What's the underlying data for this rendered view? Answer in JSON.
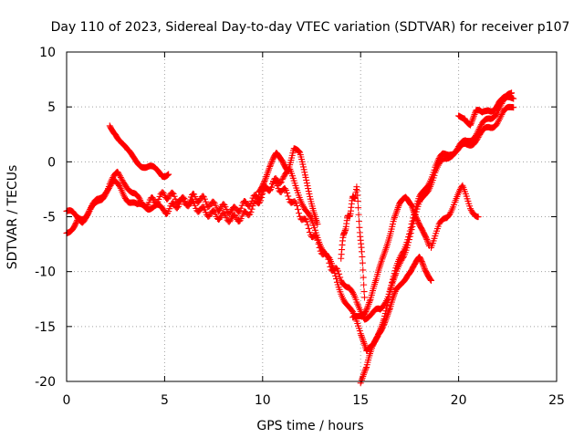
{
  "chart_data": {
    "type": "scatter",
    "title": "Day 110 of 2023, Sidereal Day-to-day VTEC variation (SDTVAR) for receiver p107",
    "xlabel": "GPS time / hours",
    "ylabel": "SDTVAR / TECUs",
    "xlim": [
      0,
      25
    ],
    "ylim": [
      -20,
      10
    ],
    "x_ticks": [
      "0",
      "5",
      "10",
      "15",
      "20",
      "25"
    ],
    "y_ticks": [
      "10",
      "5",
      "0",
      "-5",
      "-10",
      "-15",
      "-20"
    ],
    "grid": true,
    "marker": "+",
    "color": "#ff0000",
    "series": [
      {
        "x": [
          0.0,
          0.3,
          0.6,
          1.0,
          1.4,
          1.8,
          2.2,
          2.6,
          3.0,
          3.4,
          3.8,
          4.2,
          4.6,
          5.0,
          5.5,
          6.0,
          6.5,
          7.0,
          7.5,
          8.0,
          8.5,
          9.0,
          9.5,
          10.0,
          10.5,
          11.0,
          11.4,
          11.8,
          12.2,
          12.6,
          13.0,
          13.4,
          13.8,
          14.2,
          14.6,
          15.0,
          15.3,
          15.6,
          15.9,
          16.2,
          16.5,
          16.8,
          17.2,
          17.6,
          18.0,
          18.4,
          18.8,
          19.2,
          19.6,
          20.0,
          20.4,
          20.8,
          21.2,
          21.6,
          22.0,
          22.4,
          22.8
        ],
        "y": [
          -6.5,
          -5.8,
          -5.0,
          -4.8,
          -4.2,
          -3.2,
          -2.0,
          -1.2,
          -1.8,
          -3.0,
          -3.8,
          -4.0,
          -4.2,
          -4.5,
          -4.0,
          -3.5,
          -4.0,
          -4.5,
          -4.8,
          -5.0,
          -5.2,
          -5.0,
          -4.2,
          -3.0,
          -2.0,
          -1.5,
          -1.0,
          -2.5,
          -4.5,
          -6.0,
          -7.5,
          -9.0,
          -11.0,
          -12.5,
          -14.0,
          -15.5,
          -17.5,
          -17.0,
          -15.5,
          -14.0,
          -12.0,
          -10.5,
          -8.5,
          -6.0,
          -4.0,
          -2.5,
          -1.0,
          0.0,
          0.8,
          1.2,
          1.8,
          2.5,
          3.2,
          4.0,
          4.8,
          5.5,
          6.0
        ]
      },
      {
        "x": [
          0.0,
          0.4,
          0.8,
          1.2,
          1.6,
          2.0,
          2.4,
          2.8,
          3.2,
          3.6,
          4.0,
          4.5,
          5.0,
          5.5,
          6.0,
          6.5,
          7.0,
          7.5,
          8.0,
          8.5,
          9.0,
          9.5,
          10.0,
          10.5,
          11.0,
          11.5,
          12.0,
          12.5,
          13.0,
          13.5,
          14.0,
          14.4,
          14.8,
          15.2,
          15.6,
          16.0,
          16.4,
          16.8,
          17.2,
          17.6,
          18.0,
          18.4,
          18.8,
          19.2,
          19.6,
          20.0,
          20.4,
          20.8,
          21.2,
          21.6,
          22.0,
          22.4,
          22.8
        ],
        "y": [
          -4.5,
          -5.0,
          -5.2,
          -4.5,
          -3.5,
          -2.5,
          -2.0,
          -2.5,
          -3.5,
          -4.2,
          -3.8,
          -3.5,
          -3.0,
          -3.2,
          -3.8,
          -3.2,
          -3.5,
          -4.0,
          -4.2,
          -4.5,
          -4.0,
          -3.5,
          -2.8,
          -2.0,
          -2.5,
          -3.5,
          -5.0,
          -6.5,
          -8.0,
          -9.5,
          -10.5,
          -11.5,
          -13.0,
          -14.0,
          -14.0,
          -13.5,
          -12.0,
          -10.0,
          -8.0,
          -5.5,
          -3.5,
          -2.0,
          -0.5,
          0.5,
          1.0,
          1.0,
          1.5,
          2.0,
          2.5,
          3.2,
          3.8,
          4.5,
          5.2
        ]
      },
      {
        "x": [
          2.2,
          2.5,
          2.8,
          3.1,
          3.4,
          3.7,
          4.0,
          4.3,
          4.6,
          4.9,
          5.2
        ],
        "y": [
          3.3,
          2.8,
          1.8,
          0.8,
          0.3,
          0.0,
          -0.3,
          -0.6,
          -1.0,
          -1.2,
          -0.8
        ]
      },
      {
        "x": [
          9.8,
          10.1,
          10.4,
          10.7,
          11.0,
          11.3,
          11.6,
          11.9,
          12.2,
          12.5,
          12.8
        ],
        "y": [
          -2.5,
          -1.5,
          -0.5,
          0.5,
          0.2,
          -0.5,
          1.2,
          0.5,
          -1.5,
          -3.5,
          -5.5
        ]
      },
      {
        "x": [
          14.0,
          14.2,
          14.4,
          14.6,
          14.8,
          15.0,
          15.2
        ],
        "y": [
          -8.5,
          -6.0,
          -5.0,
          -3.5,
          -2.5,
          -7.0,
          -12.0
        ]
      },
      {
        "x": [
          14.6,
          14.9,
          15.2,
          15.5,
          15.8,
          16.1,
          16.4,
          16.7,
          17.0,
          17.3,
          17.6,
          17.9,
          18.2,
          18.5
        ],
        "y": [
          -14.5,
          -14.0,
          -13.5,
          -12.5,
          -11.0,
          -9.0,
          -7.0,
          -5.0,
          -4.0,
          -3.5,
          -3.8,
          -5.0,
          -6.5,
          -8.0
        ]
      },
      {
        "x": [
          15.0,
          15.3,
          15.6,
          15.9,
          16.2,
          16.5,
          16.8,
          17.1,
          17.4,
          17.7,
          18.0,
          18.3,
          18.6
        ],
        "y": [
          -20.0,
          -19.0,
          -17.0,
          -15.5,
          -14.5,
          -13.5,
          -12.0,
          -11.0,
          -10.0,
          -9.5,
          -9.0,
          -10.0,
          -10.5
        ]
      },
      {
        "x": [
          18.6,
          19.0,
          19.4,
          19.8,
          20.2,
          20.6,
          21.0
        ],
        "y": [
          -7.5,
          -6.0,
          -5.0,
          -3.5,
          -2.5,
          -4.0,
          -5.0
        ]
      },
      {
        "x": [
          20.0,
          20.3,
          20.6,
          20.9,
          21.2,
          21.5,
          21.8,
          22.1,
          22.4,
          22.7
        ],
        "y": [
          4.0,
          4.2,
          3.6,
          4.5,
          4.2,
          4.8,
          5.0,
          5.5,
          5.6,
          6.2
        ]
      }
    ]
  }
}
